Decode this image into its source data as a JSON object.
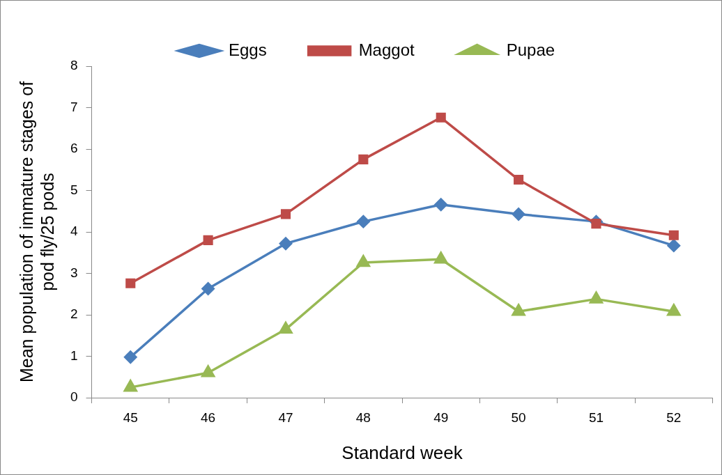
{
  "chart_data": {
    "type": "line",
    "xlabel": "Standard week",
    "ylabel": "Mean population of immature stages of\npod fly/25 pods",
    "categories": [
      "45",
      "46",
      "47",
      "48",
      "49",
      "50",
      "51",
      "52"
    ],
    "series": [
      {
        "name": "Eggs",
        "color": "#4a7ebb",
        "marker": "diamond",
        "values": [
          0.98,
          2.63,
          3.72,
          4.25,
          4.66,
          4.43,
          4.25,
          3.67
        ]
      },
      {
        "name": "Maggot",
        "color": "#be4b48",
        "marker": "square",
        "values": [
          2.76,
          3.8,
          4.43,
          5.75,
          6.76,
          5.26,
          4.2,
          3.92
        ]
      },
      {
        "name": "Pupae",
        "color": "#98b954",
        "marker": "triangle",
        "values": [
          0.25,
          0.6,
          1.65,
          3.26,
          3.34,
          2.08,
          2.38,
          2.08
        ]
      }
    ],
    "ylim": [
      0,
      8
    ],
    "yticks": [
      0,
      1,
      2,
      3,
      4,
      5,
      6,
      7,
      8
    ],
    "grid": false,
    "legend": "top",
    "line_style": "solid"
  }
}
